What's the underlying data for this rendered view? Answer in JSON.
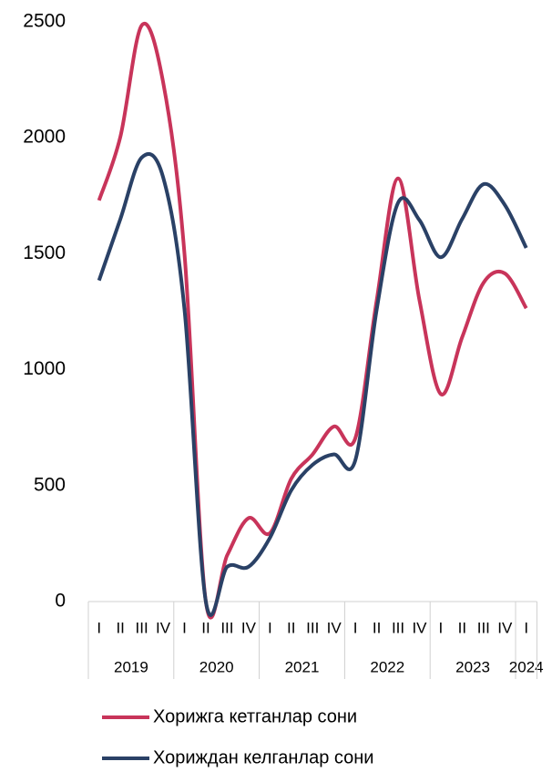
{
  "chart_data": {
    "type": "line",
    "groups": [
      {
        "label": "2019",
        "categories": [
          "I",
          "II",
          "III",
          "IV"
        ]
      },
      {
        "label": "2020",
        "categories": [
          "I",
          "II",
          "III",
          "IV"
        ]
      },
      {
        "label": "2021",
        "categories": [
          "I",
          "II",
          "III",
          "IV"
        ]
      },
      {
        "label": "2022",
        "categories": [
          "I",
          "II",
          "III",
          "IV"
        ]
      },
      {
        "label": "2023",
        "categories": [
          "I",
          "II",
          "III",
          "IV"
        ]
      },
      {
        "label": "2024",
        "categories": [
          "I"
        ]
      }
    ],
    "series": [
      {
        "name": "Хорижга кетганлар сони",
        "color": "#c8345a",
        "values": [
          1730,
          2005,
          2485,
          2240,
          1500,
          0,
          200,
          360,
          295,
          530,
          635,
          755,
          705,
          1300,
          1825,
          1300,
          895,
          1140,
          1375,
          1415,
          1265
        ]
      },
      {
        "name": "Хориждан келганлар сони",
        "color": "#2a4166",
        "values": [
          1385,
          1650,
          1915,
          1830,
          1260,
          0,
          150,
          150,
          275,
          480,
          590,
          635,
          610,
          1260,
          1720,
          1645,
          1485,
          1650,
          1800,
          1710,
          1525
        ]
      }
    ],
    "ylim": [
      0,
      2500
    ],
    "yticks": [
      0,
      500,
      1000,
      1500,
      2000,
      2500
    ],
    "grid": false,
    "smooth": true,
    "legend": "bottom"
  }
}
